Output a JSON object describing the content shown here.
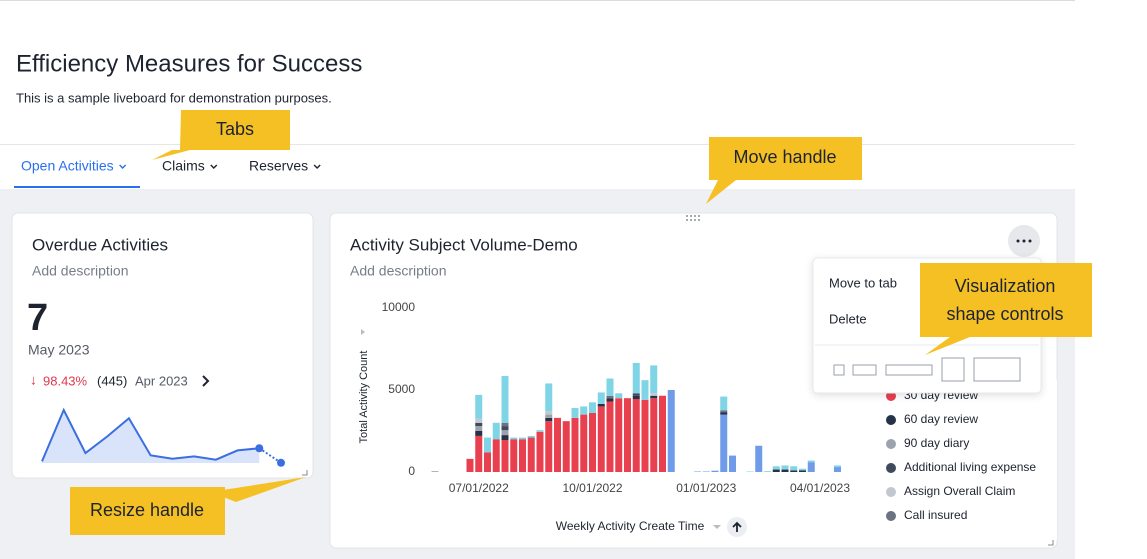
{
  "header": {
    "title": "Efficiency Measures for Success",
    "subtitle": "This is a sample liveboard for demonstration purposes."
  },
  "tabs": [
    "Open Activities",
    "Claims",
    "Reserves"
  ],
  "kpi": {
    "title": "Overdue Activities",
    "description": "Add description",
    "value": "7",
    "period": "May 2023",
    "change": "98.43%",
    "previous_value": "(445)",
    "previous_period": "Apr 2023",
    "sparkline": {
      "values": [
        50,
        1600,
        300,
        800,
        1350,
        230,
        130,
        200,
        100,
        380,
        445,
        7
      ]
    }
  },
  "chart_card": {
    "description": "Add description",
    "menu": [
      "Move to tab",
      "Delete"
    ]
  },
  "callouts": [
    "Tabs",
    "Move handle",
    "Visualization shape controls",
    "Resize handle"
  ],
  "chart_data": {
    "type": "stacked-bar",
    "title": "Activity Subject Volume-Demo",
    "x_label": "Weekly Activity Create Time",
    "y_label": "Total Activity Count",
    "ylim": [
      0,
      10000
    ],
    "yticks": [
      0,
      5000,
      10000
    ],
    "categories": [
      null,
      null,
      null,
      null,
      null,
      "07/01/2022",
      null,
      null,
      null,
      null,
      null,
      null,
      null,
      null,
      null,
      null,
      null,
      null,
      "10/01/2022",
      null,
      null,
      null,
      null,
      null,
      null,
      null,
      null,
      null,
      null,
      null,
      null,
      "01/01/2023",
      null,
      null,
      null,
      null,
      null,
      null,
      null,
      null,
      null,
      null,
      null,
      null,
      "04/01/2023",
      null,
      null
    ],
    "series": [
      {
        "name": "30 day review",
        "color": "#e8404f",
        "values": [
          0,
          0,
          0,
          0,
          800,
          2200,
          1200,
          2000,
          1950,
          2000,
          2000,
          2100,
          2450,
          3100,
          3300,
          3100,
          3300,
          3500,
          3600,
          4000,
          4300,
          4500,
          4500,
          4450,
          4400,
          4500,
          4650,
          0,
          0,
          0,
          0,
          0,
          0,
          0,
          0,
          0,
          0,
          0,
          0,
          0,
          0,
          0,
          0,
          0,
          0,
          0,
          0
        ]
      },
      {
        "color": "#6f9be8",
        "values": [
          0,
          0,
          0,
          0,
          0,
          0,
          0,
          0,
          0,
          0,
          0,
          0,
          0,
          0,
          0,
          0,
          0,
          0,
          0,
          0,
          0,
          0,
          0,
          0,
          0,
          0,
          0,
          5000,
          0,
          0,
          30,
          30,
          80,
          3500,
          1000,
          0,
          0,
          1600,
          0,
          0,
          0,
          0,
          0,
          600,
          0,
          0,
          300
        ]
      },
      {
        "name": "60 day review",
        "color": "#263248",
        "values": [
          0,
          0,
          0,
          0,
          0,
          300,
          0,
          0,
          300,
          0,
          0,
          0,
          0,
          200,
          0,
          0,
          0,
          0,
          0,
          150,
          200,
          0,
          0,
          200,
          0,
          150,
          0,
          0,
          0,
          0,
          0,
          0,
          0,
          150,
          0,
          0,
          0,
          0,
          0,
          150,
          150,
          100,
          100,
          0,
          0,
          0,
          0
        ]
      },
      {
        "name": "90 day diary",
        "color": "#9ca3af",
        "values": [
          50,
          0,
          0,
          0,
          0,
          300,
          0,
          0,
          300,
          0,
          0,
          0,
          0,
          200,
          0,
          0,
          0,
          0,
          0,
          0,
          0,
          0,
          0,
          0,
          0,
          0,
          0,
          0,
          0,
          0,
          0,
          0,
          0,
          0,
          0,
          0,
          0,
          0,
          0,
          0,
          0,
          0,
          0,
          0,
          0,
          0,
          0
        ]
      },
      {
        "name": "Additional living expense",
        "color": "#3f4a5c",
        "values": [
          0,
          0,
          0,
          0,
          0,
          200,
          0,
          0,
          250,
          0,
          0,
          0,
          0,
          0,
          0,
          0,
          0,
          0,
          0,
          0,
          0,
          0,
          0,
          150,
          0,
          0,
          0,
          0,
          0,
          0,
          0,
          0,
          0,
          0,
          0,
          0,
          0,
          0,
          0,
          0,
          0,
          0,
          0,
          0,
          0,
          0,
          0
        ]
      },
      {
        "name": "Assign Overall Claim",
        "color": "#c3c8d0",
        "values": [
          0,
          0,
          0,
          0,
          0,
          250,
          0,
          0,
          0,
          0,
          0,
          0,
          0,
          200,
          0,
          0,
          0,
          0,
          0,
          0,
          0,
          0,
          0,
          0,
          0,
          150,
          0,
          0,
          0,
          0,
          0,
          0,
          0,
          0,
          0,
          0,
          0,
          0,
          0,
          0,
          0,
          0,
          0,
          0,
          0,
          0,
          0
        ]
      },
      {
        "name": "Call insured",
        "color": "#6b7280",
        "values": [
          0,
          0,
          0,
          0,
          0,
          0,
          0,
          0,
          200,
          0,
          0,
          0,
          0,
          0,
          0,
          0,
          0,
          0,
          0,
          0,
          150,
          0,
          0,
          0,
          0,
          0,
          0,
          0,
          0,
          0,
          0,
          0,
          0,
          100,
          0,
          0,
          0,
          0,
          0,
          0,
          0,
          0,
          0,
          0,
          0,
          0,
          0
        ]
      },
      {
        "color": "#7fd4e6",
        "values": [
          0,
          0,
          0,
          0,
          0,
          1450,
          900,
          1000,
          2850,
          100,
          100,
          100,
          100,
          1700,
          0,
          0,
          600,
          500,
          650,
          700,
          1050,
          300,
          0,
          1850,
          1200,
          1700,
          0,
          0,
          0,
          0,
          0,
          0,
          0,
          850,
          0,
          0,
          30,
          0,
          50,
          200,
          250,
          250,
          100,
          100,
          0,
          0,
          100
        ]
      }
    ]
  }
}
